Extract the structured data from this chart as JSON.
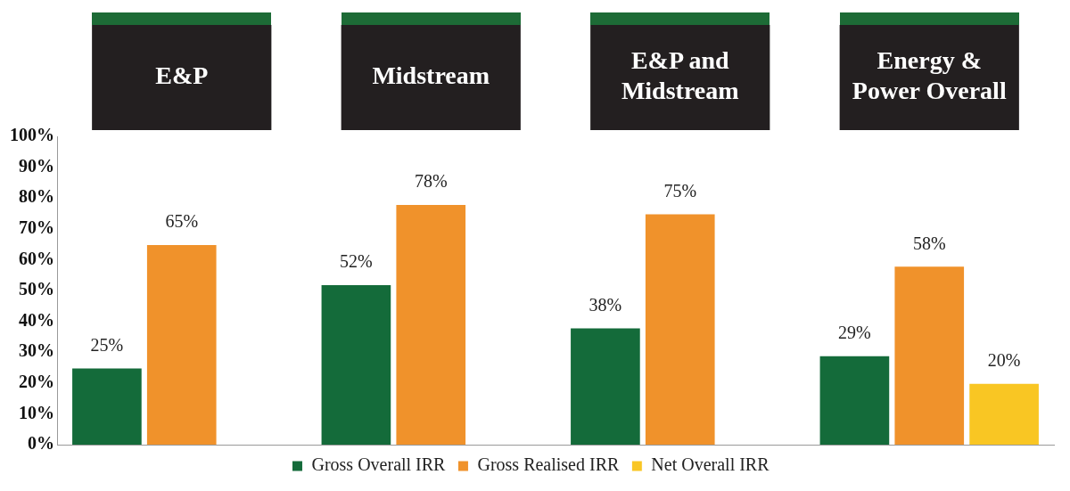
{
  "chart_data": {
    "type": "bar",
    "categories": [
      "E&P",
      "Midstream",
      "E&P and Midstream",
      "Energy & Power Overall"
    ],
    "series": [
      {
        "name": "Gross Overall IRR",
        "color": "#146b3a",
        "values": [
          25,
          52,
          38,
          29
        ],
        "value_labels": [
          "25%",
          "52%",
          "38%",
          "29%"
        ]
      },
      {
        "name": "Gross Realised IRR",
        "color": "#f0922b",
        "values": [
          65,
          78,
          75,
          58
        ],
        "value_labels": [
          "65%",
          "78%",
          "75%",
          "58%"
        ]
      },
      {
        "name": "Net Overall IRR",
        "color": "#f9c623",
        "values": [
          null,
          null,
          null,
          20
        ],
        "value_labels": [
          null,
          null,
          null,
          "20%"
        ]
      }
    ],
    "ylim": [
      0,
      100
    ],
    "yticks": [
      {
        "value": 0,
        "label": "0%"
      },
      {
        "value": 10,
        "label": "10%"
      },
      {
        "value": 20,
        "label": "20%"
      },
      {
        "value": 30,
        "label": "30%"
      },
      {
        "value": 40,
        "label": "40%"
      },
      {
        "value": 50,
        "label": "50%"
      },
      {
        "value": 60,
        "label": "60%"
      },
      {
        "value": 70,
        "label": "70%"
      },
      {
        "value": 80,
        "label": "80%"
      },
      {
        "value": 90,
        "label": "90%"
      },
      {
        "value": 100,
        "label": "100%"
      }
    ],
    "grid": false,
    "legend": "bottom"
  }
}
